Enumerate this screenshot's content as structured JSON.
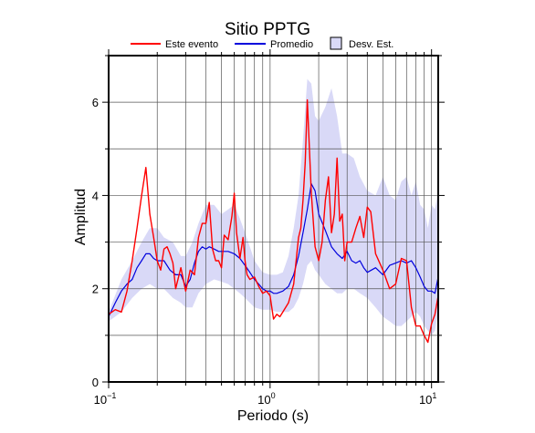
{
  "chart_data": {
    "type": "line",
    "title": "Sitio PPTG",
    "xlabel": "Periodo (s)",
    "ylabel": "Amplitud",
    "x_scale": "log",
    "xlim": [
      0.1,
      11
    ],
    "ylim": [
      0,
      7
    ],
    "grid": true,
    "legend_position": "top",
    "x_ticks": [
      0.1,
      1,
      10
    ],
    "x_tick_labels": [
      [
        "10",
        "−1"
      ],
      [
        "10",
        "0"
      ],
      [
        "10",
        "1"
      ]
    ],
    "y_ticks": [
      0,
      2,
      4,
      6
    ],
    "y_tick_labels": [
      "0",
      "2",
      "4",
      "6"
    ],
    "series": [
      {
        "name": "Este evento",
        "color": "#ff0000",
        "x": [
          0.1,
          0.11,
          0.12,
          0.13,
          0.14,
          0.15,
          0.16,
          0.17,
          0.18,
          0.19,
          0.2,
          0.21,
          0.22,
          0.23,
          0.24,
          0.25,
          0.26,
          0.28,
          0.3,
          0.32,
          0.34,
          0.36,
          0.38,
          0.4,
          0.42,
          0.44,
          0.46,
          0.48,
          0.5,
          0.52,
          0.55,
          0.58,
          0.6,
          0.62,
          0.65,
          0.68,
          0.7,
          0.72,
          0.75,
          0.8,
          0.85,
          0.9,
          0.95,
          1.0,
          1.05,
          1.1,
          1.15,
          1.2,
          1.3,
          1.4,
          1.5,
          1.55,
          1.6,
          1.65,
          1.7,
          1.8,
          1.9,
          2.0,
          2.1,
          2.2,
          2.3,
          2.4,
          2.5,
          2.6,
          2.7,
          2.8,
          2.9,
          3.0,
          3.2,
          3.4,
          3.6,
          3.8,
          4.0,
          4.2,
          4.5,
          5.0,
          5.5,
          6.0,
          6.5,
          7.0,
          7.5,
          8.0,
          8.5,
          9.0,
          9.5,
          10.0,
          10.5,
          11.0
        ],
        "values": [
          1.45,
          1.55,
          1.5,
          1.95,
          2.6,
          3.3,
          4.0,
          4.6,
          3.6,
          3.1,
          2.6,
          2.4,
          2.85,
          2.9,
          2.75,
          2.55,
          2.0,
          2.45,
          1.95,
          2.4,
          2.3,
          3.1,
          3.4,
          3.4,
          3.85,
          2.85,
          2.6,
          2.6,
          2.45,
          3.15,
          3.05,
          3.55,
          4.05,
          3.2,
          2.65,
          3.1,
          2.6,
          2.3,
          2.2,
          2.25,
          2.05,
          1.9,
          1.95,
          1.85,
          1.35,
          1.45,
          1.4,
          1.5,
          1.7,
          2.1,
          3.1,
          3.3,
          3.9,
          4.7,
          6.05,
          4.05,
          2.9,
          2.6,
          3.0,
          3.9,
          4.4,
          3.2,
          3.6,
          4.8,
          3.45,
          3.6,
          2.6,
          3.0,
          3.0,
          3.3,
          3.55,
          3.1,
          3.75,
          3.65,
          2.75,
          2.4,
          2.0,
          2.1,
          2.65,
          2.6,
          1.6,
          1.2,
          1.2,
          1.0,
          0.85,
          1.25,
          1.45,
          1.85
        ]
      },
      {
        "name": "Promedio",
        "color": "#0000dd",
        "x": [
          0.1,
          0.11,
          0.12,
          0.13,
          0.14,
          0.15,
          0.16,
          0.17,
          0.18,
          0.19,
          0.2,
          0.22,
          0.24,
          0.26,
          0.28,
          0.3,
          0.32,
          0.34,
          0.36,
          0.38,
          0.4,
          0.42,
          0.45,
          0.48,
          0.5,
          0.55,
          0.6,
          0.65,
          0.7,
          0.75,
          0.8,
          0.85,
          0.9,
          0.95,
          1.0,
          1.05,
          1.1,
          1.2,
          1.3,
          1.4,
          1.5,
          1.6,
          1.7,
          1.8,
          1.9,
          2.0,
          2.2,
          2.4,
          2.6,
          2.8,
          3.0,
          3.2,
          3.4,
          3.6,
          3.8,
          4.0,
          4.5,
          5.0,
          5.5,
          6.0,
          6.5,
          7.0,
          7.5,
          8.0,
          8.5,
          9.0,
          9.5,
          10.0,
          10.5,
          11.0
        ],
        "values": [
          1.4,
          1.7,
          1.95,
          2.1,
          2.2,
          2.45,
          2.6,
          2.75,
          2.75,
          2.65,
          2.6,
          2.6,
          2.4,
          2.3,
          2.3,
          2.05,
          2.2,
          2.55,
          2.8,
          2.9,
          2.85,
          2.9,
          2.85,
          2.8,
          2.8,
          2.8,
          2.75,
          2.65,
          2.5,
          2.35,
          2.2,
          2.1,
          2.0,
          1.95,
          1.95,
          1.9,
          1.9,
          1.95,
          2.05,
          2.3,
          2.7,
          3.2,
          3.7,
          4.25,
          4.1,
          3.6,
          3.25,
          2.9,
          2.75,
          2.65,
          2.8,
          2.6,
          2.55,
          2.6,
          2.45,
          2.35,
          2.45,
          2.3,
          2.5,
          2.55,
          2.6,
          2.55,
          2.6,
          2.45,
          2.25,
          2.05,
          1.95,
          1.95,
          1.9,
          2.25
        ]
      },
      {
        "name": "Desv. Est.",
        "kind": "band",
        "color": "#d9d9f7",
        "x": [
          0.1,
          0.12,
          0.14,
          0.16,
          0.18,
          0.2,
          0.22,
          0.25,
          0.28,
          0.3,
          0.33,
          0.36,
          0.4,
          0.45,
          0.5,
          0.55,
          0.6,
          0.65,
          0.7,
          0.75,
          0.8,
          0.9,
          1.0,
          1.1,
          1.2,
          1.3,
          1.4,
          1.5,
          1.6,
          1.7,
          1.8,
          1.9,
          2.0,
          2.2,
          2.4,
          2.6,
          2.8,
          3.0,
          3.3,
          3.6,
          4.0,
          4.5,
          5.0,
          5.5,
          6.0,
          6.5,
          7.0,
          7.5,
          8.0,
          8.5,
          9.0,
          9.5,
          10.0,
          10.5,
          11.0
        ],
        "upper": [
          1.5,
          2.2,
          2.6,
          3.0,
          3.3,
          3.3,
          3.1,
          3.0,
          2.7,
          2.7,
          3.0,
          3.4,
          3.8,
          3.8,
          3.6,
          3.7,
          3.8,
          3.5,
          3.2,
          2.9,
          2.6,
          2.35,
          2.3,
          2.3,
          2.35,
          2.7,
          3.3,
          4.0,
          5.2,
          6.5,
          6.4,
          5.7,
          5.6,
          5.9,
          6.3,
          5.7,
          4.9,
          4.9,
          4.8,
          4.4,
          4.1,
          4.0,
          4.4,
          4.0,
          3.9,
          4.3,
          4.4,
          4.0,
          4.3,
          3.8,
          3.7,
          3.3,
          3.8,
          3.7,
          4.1
        ],
        "lower": [
          1.3,
          1.5,
          1.8,
          2.0,
          2.1,
          2.0,
          2.0,
          1.8,
          1.7,
          1.6,
          1.6,
          1.9,
          2.1,
          2.2,
          2.15,
          2.1,
          2.0,
          1.9,
          1.8,
          1.7,
          1.6,
          1.55,
          1.55,
          1.5,
          1.5,
          1.5,
          1.6,
          1.8,
          2.1,
          2.5,
          2.6,
          2.4,
          2.3,
          2.1,
          2.0,
          1.9,
          1.9,
          2.0,
          2.0,
          1.9,
          1.8,
          1.6,
          1.4,
          1.3,
          1.2,
          1.2,
          1.3,
          1.4,
          1.5,
          1.4,
          1.2,
          1.1,
          1.0,
          1.1,
          1.5
        ]
      }
    ]
  }
}
